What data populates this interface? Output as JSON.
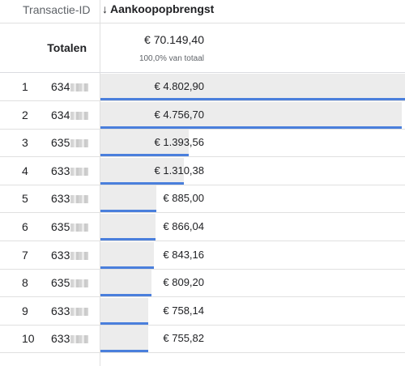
{
  "header": {
    "dimension_label": "Transactie-ID",
    "metric_label": "Aankoopopbrengst",
    "sort_icon": "↓"
  },
  "totals": {
    "label": "Totalen",
    "value": "€ 70.149,40",
    "percent": "100,0% van totaal"
  },
  "rows": [
    {
      "rank": "1",
      "id": "634",
      "value": "€ 4.802,90",
      "bar_fraction": 1.0
    },
    {
      "rank": "2",
      "id": "634",
      "value": "€ 4.756,70",
      "bar_fraction": 0.99
    },
    {
      "rank": "3",
      "id": "635",
      "value": "€ 1.393,56",
      "bar_fraction": 0.29
    },
    {
      "rank": "4",
      "id": "633",
      "value": "€ 1.310,38",
      "bar_fraction": 0.273
    },
    {
      "rank": "5",
      "id": "633",
      "value": "€ 885,00",
      "bar_fraction": 0.184
    },
    {
      "rank": "6",
      "id": "635",
      "value": "€ 866,04",
      "bar_fraction": 0.18
    },
    {
      "rank": "7",
      "id": "633",
      "value": "€ 843,16",
      "bar_fraction": 0.176
    },
    {
      "rank": "8",
      "id": "635",
      "value": "€ 809,20",
      "bar_fraction": 0.168
    },
    {
      "rank": "9",
      "id": "633",
      "value": "€ 758,14",
      "bar_fraction": 0.158
    },
    {
      "rank": "10",
      "id": "633",
      "value": "€ 755,82",
      "bar_fraction": 0.157
    }
  ],
  "colors": {
    "bar_fill": "#ececec",
    "bar_line": "#4a7fdc"
  }
}
